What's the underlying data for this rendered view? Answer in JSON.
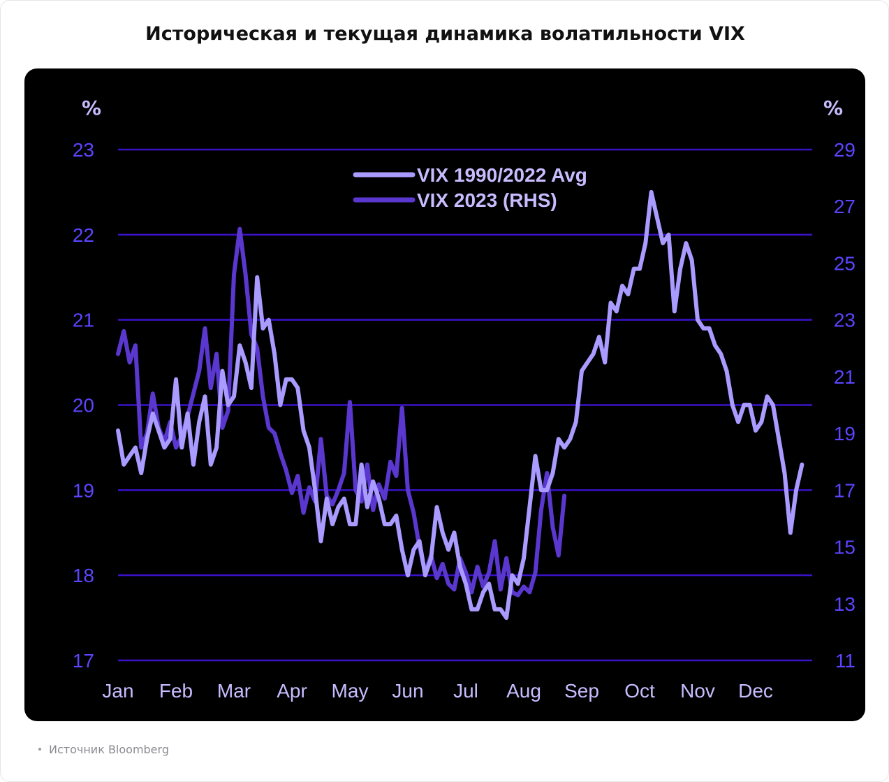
{
  "title": "Историческая и текущая динамика волатильности VIX",
  "source": "Источник Bloomberg",
  "colors": {
    "background": "#000000",
    "grid": "#3a12c8",
    "tick": "#5b45ff",
    "avg_line": "#a99bff",
    "rhs_line": "#5a38d0",
    "legend_text": "#c8bcff"
  },
  "chart_data": {
    "type": "line",
    "x_categories": [
      "Jan",
      "Feb",
      "Mar",
      "Apr",
      "May",
      "Jun",
      "Jul",
      "Aug",
      "Sep",
      "Oct",
      "Nov",
      "Dec"
    ],
    "y_left": {
      "unit": "%",
      "min": 17,
      "max": 23,
      "ticks": [
        "23",
        "22",
        "21",
        "20",
        "19",
        "18",
        "17"
      ]
    },
    "y_right": {
      "unit": "%",
      "min": 11,
      "max": 29,
      "ticks": [
        "29",
        "27",
        "25",
        "23",
        "21",
        "19",
        "17",
        "15",
        "13",
        "11"
      ]
    },
    "grid": true,
    "legend_position": "top-center",
    "series": [
      {
        "name": "VIX 1990/2022 Avg",
        "axis": "left",
        "x": [
          0.0,
          0.1,
          0.2,
          0.3,
          0.4,
          0.5,
          0.6,
          0.7,
          0.8,
          0.9,
          1.0,
          1.1,
          1.2,
          1.3,
          1.4,
          1.5,
          1.6,
          1.7,
          1.8,
          1.9,
          2.0,
          2.1,
          2.2,
          2.3,
          2.4,
          2.5,
          2.6,
          2.7,
          2.8,
          2.9,
          3.0,
          3.1,
          3.2,
          3.3,
          3.4,
          3.5,
          3.6,
          3.7,
          3.8,
          3.9,
          4.0,
          4.1,
          4.2,
          4.3,
          4.4,
          4.5,
          4.6,
          4.7,
          4.8,
          4.9,
          5.0,
          5.1,
          5.2,
          5.3,
          5.4,
          5.5,
          5.6,
          5.7,
          5.8,
          5.9,
          6.0,
          6.1,
          6.2,
          6.3,
          6.4,
          6.5,
          6.6,
          6.7,
          6.8,
          6.9,
          7.0,
          7.1,
          7.2,
          7.3,
          7.4,
          7.5,
          7.6,
          7.7,
          7.8,
          7.9,
          8.0,
          8.1,
          8.2,
          8.3,
          8.4,
          8.5,
          8.6,
          8.7,
          8.8,
          8.9,
          9.0,
          9.1,
          9.2,
          9.3,
          9.4,
          9.5,
          9.6,
          9.7,
          9.8,
          9.9,
          10.0,
          10.1,
          10.2,
          10.3,
          10.4,
          10.5,
          10.6,
          10.7,
          10.8,
          10.9,
          11.0,
          11.1,
          11.2,
          11.3,
          11.4,
          11.5,
          11.6,
          11.7,
          11.8
        ],
        "values": [
          19.7,
          19.3,
          19.4,
          19.5,
          19.2,
          19.6,
          19.9,
          19.7,
          19.5,
          19.6,
          20.3,
          19.5,
          19.9,
          19.3,
          19.8,
          20.1,
          19.3,
          19.5,
          20.4,
          20.0,
          20.1,
          20.7,
          20.5,
          20.2,
          21.5,
          20.9,
          21.0,
          20.6,
          20.0,
          20.3,
          20.3,
          20.2,
          19.7,
          19.5,
          19.0,
          18.4,
          18.9,
          18.6,
          18.8,
          18.9,
          18.6,
          18.6,
          19.3,
          18.8,
          19.1,
          18.9,
          18.6,
          18.6,
          18.7,
          18.3,
          18.0,
          18.3,
          18.4,
          18.0,
          18.2,
          18.8,
          18.5,
          18.3,
          18.5,
          18.1,
          17.9,
          17.6,
          17.6,
          17.8,
          17.9,
          17.6,
          17.6,
          17.5,
          18.0,
          17.9,
          18.2,
          18.8,
          19.4,
          19.0,
          19.0,
          19.2,
          19.6,
          19.5,
          19.6,
          19.8,
          20.4,
          20.5,
          20.6,
          20.8,
          20.5,
          21.2,
          21.1,
          21.4,
          21.3,
          21.6,
          21.6,
          21.9,
          22.5,
          22.2,
          21.9,
          22.0,
          21.1,
          21.6,
          21.9,
          21.7,
          21.0,
          20.9,
          20.9,
          20.7,
          20.6,
          20.4,
          20.0,
          19.8,
          20.0,
          20.0,
          19.7,
          19.8,
          20.1,
          20.0,
          19.6,
          19.2,
          18.5,
          19.0,
          19.3
        ],
        "color": "#a99bff"
      },
      {
        "name": "VIX 2023 (RHS)",
        "axis": "right",
        "x": [
          0.0,
          0.1,
          0.2,
          0.3,
          0.4,
          0.5,
          0.6,
          0.7,
          0.8,
          0.9,
          1.0,
          1.1,
          1.2,
          1.3,
          1.4,
          1.5,
          1.6,
          1.7,
          1.8,
          1.9,
          2.0,
          2.1,
          2.2,
          2.3,
          2.4,
          2.5,
          2.6,
          2.7,
          2.8,
          2.9,
          3.0,
          3.1,
          3.2,
          3.3,
          3.4,
          3.5,
          3.6,
          3.7,
          3.8,
          3.9,
          4.0,
          4.1,
          4.2,
          4.3,
          4.4,
          4.5,
          4.6,
          4.7,
          4.8,
          4.9,
          5.0,
          5.1,
          5.2,
          5.3,
          5.4,
          5.5,
          5.6,
          5.7,
          5.8,
          5.9,
          6.0,
          6.1,
          6.2,
          6.3,
          6.4,
          6.5,
          6.6,
          6.7,
          6.8,
          6.9,
          7.0,
          7.1,
          7.2,
          7.3,
          7.4,
          7.5,
          7.6,
          7.7
        ],
        "values": [
          21.8,
          22.6,
          21.5,
          22.1,
          18.5,
          19.0,
          20.4,
          19.2,
          18.7,
          19.4,
          18.5,
          18.9,
          19.6,
          20.4,
          21.2,
          22.7,
          20.6,
          21.8,
          19.2,
          19.8,
          24.6,
          26.2,
          24.6,
          22.5,
          22.0,
          20.3,
          19.2,
          19.0,
          18.3,
          17.7,
          16.9,
          17.5,
          16.2,
          17.1,
          16.6,
          18.8,
          16.8,
          16.5,
          17.0,
          17.6,
          20.1,
          17.0,
          16.6,
          17.9,
          16.3,
          17.2,
          16.7,
          18.0,
          17.5,
          19.9,
          17.0,
          16.2,
          15.0,
          14.1,
          14.7,
          13.9,
          14.4,
          13.7,
          13.5,
          14.6,
          14.1,
          13.4,
          14.3,
          13.6,
          14.1,
          15.2,
          13.5,
          14.6,
          13.4,
          13.3,
          13.6,
          13.4,
          14.1,
          16.3,
          17.6,
          15.7,
          14.7,
          16.8
        ],
        "color": "#5a38d0"
      }
    ]
  }
}
